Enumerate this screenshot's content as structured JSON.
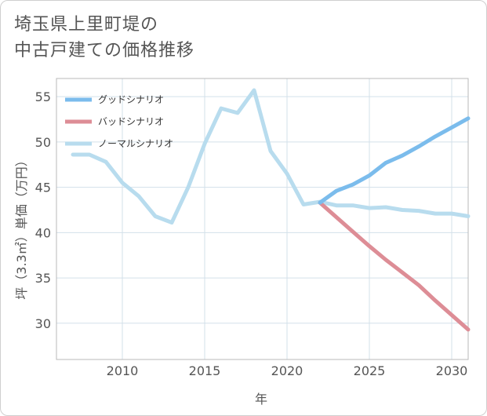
{
  "title_lines": [
    "埼玉県上里町堤の",
    "中古戸建ての価格推移"
  ],
  "chart_data": {
    "type": "line",
    "title": "埼玉県上里町堤の中古戸建ての価格推移",
    "xlabel": "年",
    "ylabel": "坪（3.3㎡）単価（万円）",
    "xlim": [
      2006,
      2031
    ],
    "ylim": [
      26,
      57
    ],
    "xticks": [
      2010,
      2015,
      2020,
      2025,
      2030
    ],
    "yticks": [
      30,
      35,
      40,
      45,
      50,
      55
    ],
    "grid": true,
    "legend_position": "top-left",
    "series": [
      {
        "name": "グッドシナリオ",
        "color": "#7bbcec",
        "x": [
          2022,
          2023,
          2024,
          2025,
          2026,
          2027,
          2028,
          2029,
          2030,
          2031
        ],
        "values": [
          43.3,
          44.6,
          45.3,
          46.3,
          47.7,
          48.5,
          49.5,
          50.6,
          51.6,
          52.6
        ]
      },
      {
        "name": "バッドシナリオ",
        "color": "#dd8d96",
        "x": [
          2022,
          2023,
          2024,
          2025,
          2026,
          2027,
          2028,
          2029,
          2030,
          2031
        ],
        "values": [
          43.3,
          41.7,
          40.1,
          38.5,
          37.0,
          35.6,
          34.2,
          32.5,
          30.9,
          29.3
        ]
      },
      {
        "name": "ノーマルシナリオ",
        "color": "#b8dcee",
        "x": [
          2007,
          2008,
          2009,
          2010,
          2011,
          2012,
          2013,
          2014,
          2015,
          2016,
          2017,
          2018,
          2019,
          2020,
          2021,
          2022,
          2023,
          2024,
          2025,
          2026,
          2027,
          2028,
          2029,
          2030,
          2031
        ],
        "values": [
          48.6,
          48.6,
          47.8,
          45.5,
          44.0,
          41.8,
          41.1,
          45.0,
          49.8,
          53.7,
          53.2,
          55.7,
          49.0,
          46.5,
          43.1,
          43.4,
          43.0,
          43.0,
          42.7,
          42.8,
          42.5,
          42.4,
          42.1,
          42.1,
          41.8
        ]
      }
    ]
  }
}
